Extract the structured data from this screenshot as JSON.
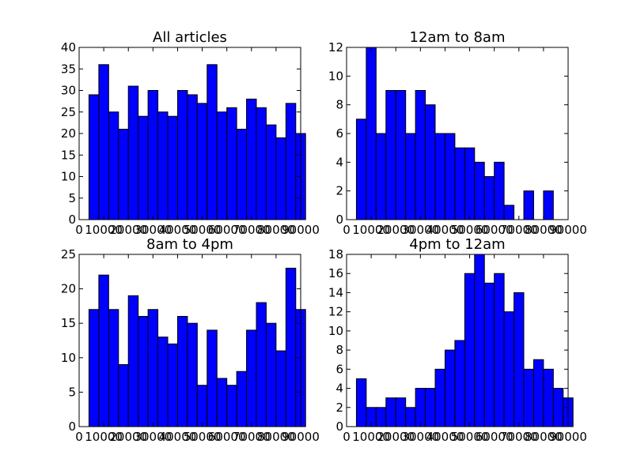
{
  "chart_data": [
    {
      "type": "bar",
      "title": "All articles",
      "bar_color": "#0000ff",
      "xlabel": "",
      "ylabel": "",
      "xlim": [
        0,
        90000
      ],
      "ylim": [
        0,
        40
      ],
      "x_ticks": [
        0,
        10000,
        20000,
        30000,
        40000,
        50000,
        60000,
        70000,
        80000,
        90000
      ],
      "x_tick_labels": [
        "0",
        "10000",
        "20000",
        "30000",
        "40000",
        "50000",
        "60000",
        "70000",
        "80000",
        "90000"
      ],
      "y_ticks": [
        0,
        5,
        10,
        15,
        20,
        25,
        30,
        35,
        40
      ],
      "y_tick_labels": [
        "0",
        "5",
        "10",
        "15",
        "20",
        "25",
        "30",
        "35",
        "40"
      ],
      "bin_start": 4000,
      "bin_width": 4000,
      "values": [
        29,
        36,
        25,
        21,
        31,
        24,
        30,
        25,
        24,
        30,
        29,
        27,
        36,
        25,
        26,
        21,
        28,
        26,
        22,
        19,
        27,
        20
      ]
    },
    {
      "type": "bar",
      "title": "12am to 8am",
      "bar_color": "#0000ff",
      "xlabel": "",
      "ylabel": "",
      "xlim": [
        0,
        90000
      ],
      "ylim": [
        0,
        12
      ],
      "x_ticks": [
        0,
        10000,
        20000,
        30000,
        40000,
        50000,
        60000,
        70000,
        80000,
        90000
      ],
      "x_tick_labels": [
        "0",
        "10000",
        "20000",
        "30000",
        "40000",
        "50000",
        "60000",
        "70000",
        "80000",
        "90000"
      ],
      "y_ticks": [
        0,
        2,
        4,
        6,
        8,
        10,
        12
      ],
      "y_tick_labels": [
        "0",
        "2",
        "4",
        "6",
        "8",
        "10",
        "12"
      ],
      "bin_start": 4000,
      "bin_width": 4000,
      "values": [
        7,
        12,
        6,
        9,
        9,
        6,
        9,
        8,
        6,
        6,
        5,
        5,
        4,
        3,
        4,
        1,
        0,
        2,
        0,
        2,
        0,
        0
      ]
    },
    {
      "type": "bar",
      "title": "8am to 4pm",
      "bar_color": "#0000ff",
      "xlabel": "",
      "ylabel": "",
      "xlim": [
        0,
        90000
      ],
      "ylim": [
        0,
        25
      ],
      "x_ticks": [
        0,
        10000,
        20000,
        30000,
        40000,
        50000,
        60000,
        70000,
        80000,
        90000
      ],
      "x_tick_labels": [
        "0",
        "10000",
        "20000",
        "30000",
        "40000",
        "50000",
        "60000",
        "70000",
        "80000",
        "90000"
      ],
      "y_ticks": [
        0,
        5,
        10,
        15,
        20,
        25
      ],
      "y_tick_labels": [
        "0",
        "5",
        "10",
        "15",
        "20",
        "25"
      ],
      "bin_start": 4000,
      "bin_width": 4000,
      "values": [
        17,
        22,
        17,
        9,
        19,
        16,
        17,
        13,
        12,
        16,
        15,
        6,
        14,
        7,
        6,
        8,
        14,
        18,
        15,
        11,
        23,
        17
      ]
    },
    {
      "type": "bar",
      "title": "4pm to 12am",
      "bar_color": "#0000ff",
      "xlabel": "",
      "ylabel": "",
      "xlim": [
        0,
        90000
      ],
      "ylim": [
        0,
        18
      ],
      "x_ticks": [
        0,
        10000,
        20000,
        30000,
        40000,
        50000,
        60000,
        70000,
        80000,
        90000
      ],
      "x_tick_labels": [
        "0",
        "10000",
        "20000",
        "30000",
        "40000",
        "50000",
        "60000",
        "70000",
        "80000",
        "90000"
      ],
      "y_ticks": [
        0,
        2,
        4,
        6,
        8,
        10,
        12,
        14,
        16,
        18
      ],
      "y_tick_labels": [
        "0",
        "2",
        "4",
        "6",
        "8",
        "10",
        "12",
        "14",
        "16",
        "18"
      ],
      "bin_start": 4000,
      "bin_width": 4000,
      "values": [
        5,
        2,
        2,
        3,
        3,
        2,
        4,
        4,
        6,
        8,
        9,
        16,
        18,
        15,
        16,
        12,
        14,
        6,
        7,
        6,
        4,
        3
      ]
    }
  ]
}
